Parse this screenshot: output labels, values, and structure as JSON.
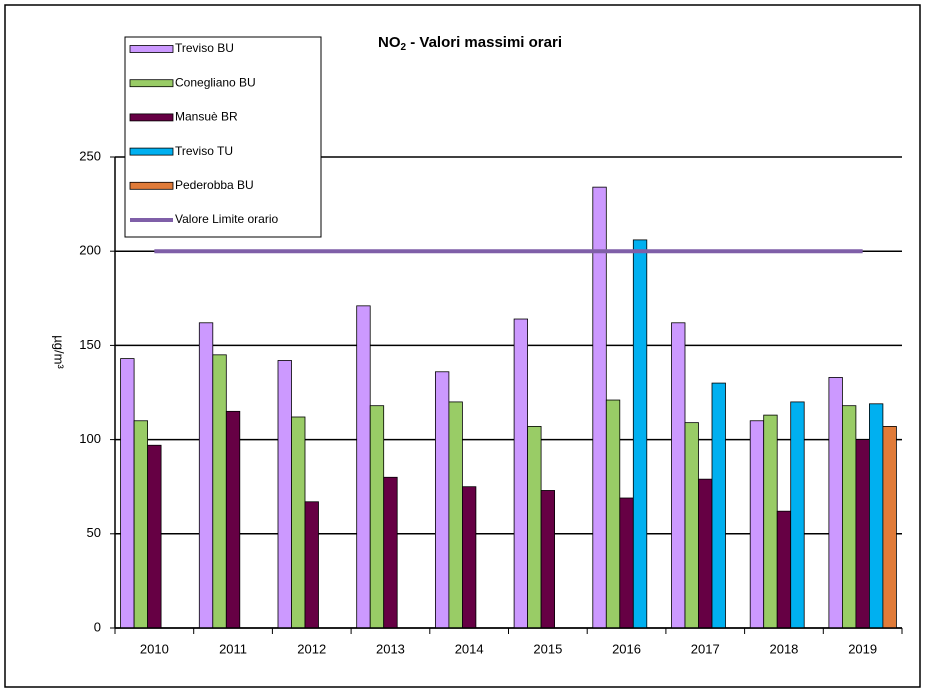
{
  "chart_data": {
    "type": "bar",
    "title": {
      "main": "NO",
      "sub": "2",
      "rest": " - Valori massimi orari"
    },
    "y_label": "µg/m³",
    "categories": [
      "2010",
      "2011",
      "2012",
      "2013",
      "2014",
      "2015",
      "2016",
      "2017",
      "2018",
      "2019"
    ],
    "series": [
      {
        "name": "Treviso BU",
        "color": "#cc99ff",
        "values": [
          143,
          162,
          142,
          171,
          136,
          164,
          234,
          162,
          110,
          133
        ]
      },
      {
        "name": "Conegliano BU",
        "color": "#99cc66",
        "values": [
          110,
          145,
          112,
          118,
          120,
          107,
          121,
          109,
          113,
          118
        ]
      },
      {
        "name": "Mansuè BR",
        "color": "#660044",
        "values": [
          97,
          115,
          67,
          80,
          75,
          73,
          69,
          79,
          62,
          100
        ]
      },
      {
        "name": "Treviso TU",
        "color": "#00b0f0",
        "values": [
          null,
          null,
          null,
          null,
          null,
          null,
          206,
          130,
          120,
          119
        ]
      },
      {
        "name": "Pederobba BU",
        "color": "#e07b39",
        "values": [
          null,
          null,
          null,
          null,
          null,
          null,
          null,
          null,
          null,
          107
        ]
      },
      {
        "name": "Valore Limite orario",
        "type": "line",
        "color": "#7f5fa8",
        "values": [
          200,
          200,
          200,
          200,
          200,
          200,
          200,
          200,
          200,
          200
        ]
      }
    ],
    "ylim": [
      0,
      250
    ],
    "yticks": [
      0,
      50,
      100,
      150,
      200,
      250
    ],
    "grid": true,
    "legend": "top-left"
  }
}
